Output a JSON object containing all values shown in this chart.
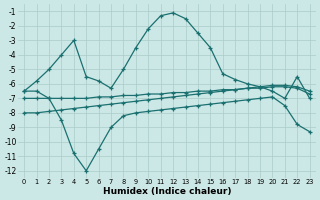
{
  "xlabel": "Humidex (Indice chaleur)",
  "bg_color": "#cce8e6",
  "grid_color": "#aaccca",
  "line_color": "#1a7070",
  "xlim": [
    -0.5,
    23.5
  ],
  "ylim": [
    -12.5,
    -0.5
  ],
  "yticks": [
    -12,
    -11,
    -10,
    -9,
    -8,
    -7,
    -6,
    -5,
    -4,
    -3,
    -2,
    -1
  ],
  "xticks": [
    0,
    1,
    2,
    3,
    4,
    5,
    6,
    7,
    8,
    9,
    10,
    11,
    12,
    13,
    14,
    15,
    16,
    17,
    18,
    19,
    20,
    21,
    22,
    23
  ],
  "lines": [
    {
      "x": [
        0,
        1,
        2,
        3,
        4,
        5,
        6,
        7,
        8,
        9,
        10,
        11,
        12,
        13,
        14,
        15,
        16,
        17,
        18,
        19,
        20,
        21,
        22,
        23
      ],
      "y": [
        -6.5,
        -5.8,
        -5.0,
        -4.0,
        -3.0,
        -5.5,
        -5.8,
        -6.3,
        -5.0,
        -3.5,
        -2.2,
        -1.3,
        -1.1,
        -1.5,
        -2.5,
        -3.5,
        -5.3,
        -5.7,
        -6.0,
        -6.2,
        -6.5,
        -7.0,
        -5.5,
        -7.0
      ]
    },
    {
      "x": [
        0,
        1,
        2,
        3,
        4,
        5,
        6,
        7,
        8,
        9,
        10,
        11,
        12,
        13,
        14,
        15,
        16,
        17,
        18,
        19,
        20,
        21,
        22,
        23
      ],
      "y": [
        -6.5,
        -6.5,
        -7.0,
        -8.5,
        -10.8,
        -12.0,
        -10.5,
        -9.0,
        -8.2,
        -8.0,
        -7.9,
        -7.8,
        -7.7,
        -7.6,
        -7.5,
        -7.4,
        -7.3,
        -7.2,
        -7.1,
        -7.0,
        -6.9,
        -7.5,
        -8.8,
        -9.3
      ]
    },
    {
      "x": [
        0,
        1,
        2,
        3,
        4,
        5,
        6,
        7,
        8,
        9,
        10,
        11,
        12,
        13,
        14,
        15,
        16,
        17,
        18,
        19,
        20,
        21,
        22,
        23
      ],
      "y": [
        -8.0,
        -8.0,
        -7.9,
        -7.8,
        -7.7,
        -7.6,
        -7.5,
        -7.4,
        -7.3,
        -7.2,
        -7.1,
        -7.0,
        -6.9,
        -6.8,
        -6.7,
        -6.6,
        -6.5,
        -6.4,
        -6.3,
        -6.2,
        -6.1,
        -6.1,
        -6.2,
        -6.5
      ]
    },
    {
      "x": [
        0,
        1,
        2,
        3,
        4,
        5,
        6,
        7,
        8,
        9,
        10,
        11,
        12,
        13,
        14,
        15,
        16,
        17,
        18,
        19,
        20,
        21,
        22,
        23
      ],
      "y": [
        -7.0,
        -7.0,
        -7.0,
        -7.0,
        -7.0,
        -7.0,
        -6.9,
        -6.9,
        -6.8,
        -6.8,
        -6.7,
        -6.7,
        -6.6,
        -6.6,
        -6.5,
        -6.5,
        -6.4,
        -6.4,
        -6.3,
        -6.3,
        -6.2,
        -6.2,
        -6.3,
        -6.7
      ]
    }
  ]
}
